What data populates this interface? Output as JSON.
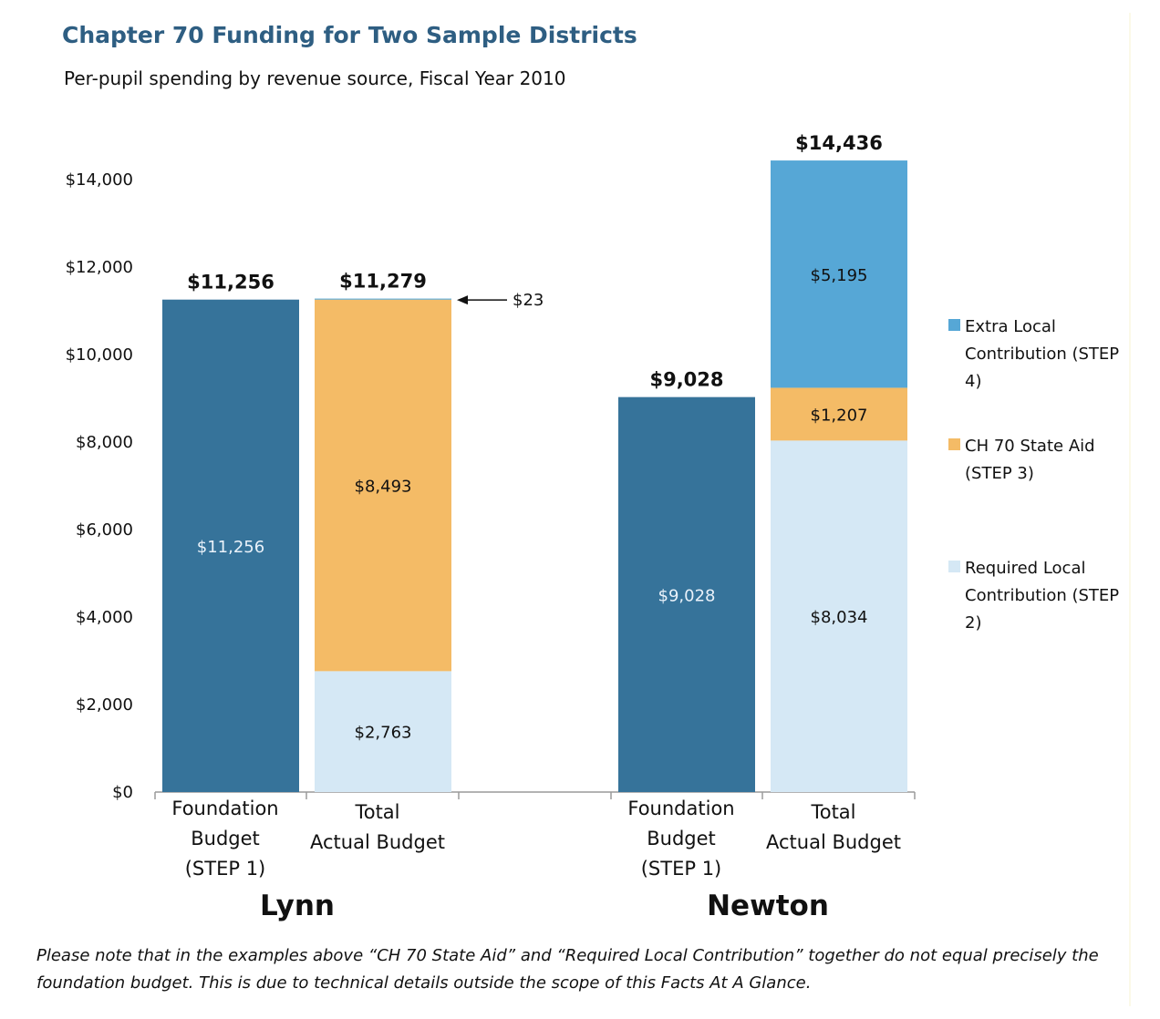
{
  "header": {
    "title": "Chapter 70 Funding for Two Sample Districts",
    "subtitle": "Per-pupil spending by revenue source, Fiscal Year 2010"
  },
  "footnote": "Please note that in the examples above “CH 70 State Aid” and “Required Local Contribution” together do not equal precisely the foundation budget. This is due to technical details outside the scope of this Facts At A Glance.",
  "chart_data": {
    "type": "bar",
    "stacked": true,
    "ylim": [
      0,
      14000
    ],
    "yticks": [
      0,
      2000,
      4000,
      6000,
      8000,
      10000,
      12000,
      14000
    ],
    "ytick_labels": [
      "$0",
      "$2,000",
      "$4,000",
      "$6,000",
      "$8,000",
      "$10,000",
      "$12,000",
      "$14,000"
    ],
    "grid": false,
    "legend_position": "right",
    "colors": {
      "foundation": "#36739a",
      "required_local": "#d5e8f5",
      "state_aid": "#f4bb66",
      "extra_local": "#56a7d6"
    },
    "legend": [
      {
        "key": "extra_local",
        "label": "Extra Local Contribution (STEP 4)"
      },
      {
        "key": "state_aid",
        "label": "CH 70 State Aid (STEP 3)"
      },
      {
        "key": "required_local",
        "label": "Required Local Contribution (STEP 2)"
      }
    ],
    "groups": [
      {
        "name": "Lynn",
        "bars": [
          {
            "category_lines": [
              "Foundation",
              "Budget",
              "(STEP 1)"
            ],
            "total_label": "$11,256",
            "segments": [
              {
                "key": "foundation",
                "value": 11256,
                "label": "$11,256"
              }
            ]
          },
          {
            "category_lines": [
              "Total",
              "Actual Budget"
            ],
            "total_label": "$11,279",
            "segments": [
              {
                "key": "required_local",
                "value": 2763,
                "label": "$2,763"
              },
              {
                "key": "state_aid",
                "value": 8493,
                "label": "$8,493"
              },
              {
                "key": "extra_local",
                "value": 23,
                "label": "$23",
                "callout": true
              }
            ]
          }
        ]
      },
      {
        "name": "Newton",
        "bars": [
          {
            "category_lines": [
              "Foundation",
              "Budget",
              "(STEP 1)"
            ],
            "total_label": "$9,028",
            "segments": [
              {
                "key": "foundation",
                "value": 9028,
                "label": "$9,028"
              }
            ]
          },
          {
            "category_lines": [
              "Total",
              "Actual Budget"
            ],
            "total_label": "$14,436",
            "segments": [
              {
                "key": "required_local",
                "value": 8034,
                "label": "$8,034"
              },
              {
                "key": "state_aid",
                "value": 1207,
                "label": "$1,207"
              },
              {
                "key": "extra_local",
                "value": 5195,
                "label": "$5,195"
              }
            ]
          }
        ]
      }
    ]
  }
}
